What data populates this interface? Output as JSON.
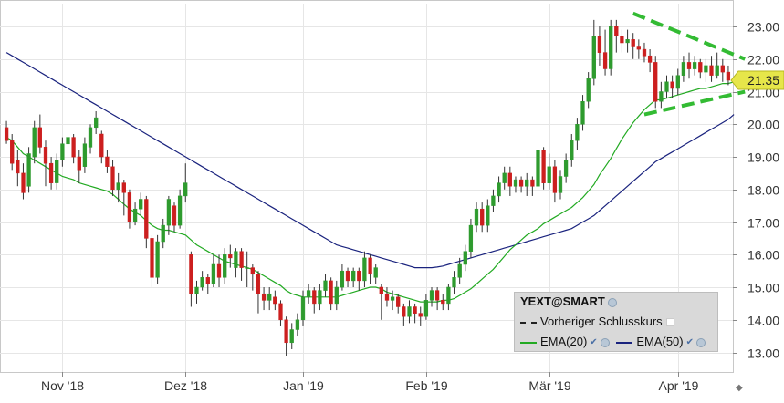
{
  "chart_data": {
    "type": "candlestick",
    "symbol": "YEXT@SMART",
    "last_price_label": "21.35",
    "ylim": [
      12.4,
      23.7
    ],
    "y_ticks": [
      "13.00",
      "14.00",
      "15.00",
      "16.00",
      "17.00",
      "18.00",
      "19.00",
      "20.00",
      "21.00",
      "22.00",
      "23.00"
    ],
    "x_ticks": [
      {
        "label": "Nov '18",
        "index": 10
      },
      {
        "label": "Dez '18",
        "index": 32
      },
      {
        "label": "Jan '19",
        "index": 53
      },
      {
        "label": "Feb '19",
        "index": 75
      },
      {
        "label": "Mär '19",
        "index": 97
      },
      {
        "label": "Apr '19",
        "index": 120
      }
    ],
    "candles": [
      [
        19.9,
        19.5,
        19.4,
        20.1
      ],
      [
        19.5,
        18.8,
        18.6,
        19.7
      ],
      [
        18.9,
        18.5,
        18.1,
        19.2
      ],
      [
        18.5,
        17.9,
        17.7,
        18.8
      ],
      [
        18.1,
        19.1,
        17.9,
        19.3
      ],
      [
        19.0,
        19.9,
        18.8,
        20.1
      ],
      [
        19.9,
        19.3,
        19.1,
        20.3
      ],
      [
        19.3,
        18.8,
        18.1,
        19.5
      ],
      [
        18.8,
        18.2,
        18.0,
        19.0
      ],
      [
        18.2,
        18.9,
        18.0,
        19.1
      ],
      [
        18.9,
        19.4,
        18.7,
        19.6
      ],
      [
        19.4,
        19.6,
        19.2,
        19.8
      ],
      [
        19.6,
        19.0,
        18.8,
        19.7
      ],
      [
        19.0,
        18.6,
        18.2,
        19.2
      ],
      [
        18.7,
        19.4,
        18.5,
        19.6
      ],
      [
        19.3,
        19.9,
        19.1,
        20.0
      ],
      [
        19.9,
        20.2,
        19.7,
        20.4
      ],
      [
        19.7,
        19.0,
        18.8,
        19.8
      ],
      [
        19.0,
        18.7,
        18.5,
        19.2
      ],
      [
        18.7,
        18.0,
        17.8,
        18.9
      ],
      [
        18.0,
        18.2,
        17.6,
        18.5
      ],
      [
        18.2,
        17.9,
        17.2,
        18.3
      ],
      [
        17.9,
        17.0,
        16.8,
        18.0
      ],
      [
        17.0,
        17.4,
        16.9,
        17.6
      ],
      [
        17.4,
        17.7,
        17.2,
        17.9
      ],
      [
        17.7,
        16.5,
        16.2,
        17.8
      ],
      [
        16.5,
        15.3,
        15.0,
        16.6
      ],
      [
        15.3,
        16.4,
        15.1,
        16.6
      ],
      [
        16.4,
        16.9,
        16.2,
        17.1
      ],
      [
        16.9,
        17.7,
        16.6,
        17.8
      ],
      [
        17.5,
        16.9,
        16.7,
        17.6
      ],
      [
        16.9,
        17.8,
        16.8,
        18.0
      ],
      [
        17.8,
        18.2,
        17.6,
        18.8
      ],
      [
        16.0,
        14.8,
        14.4,
        16.1
      ],
      [
        14.8,
        15.0,
        14.5,
        15.2
      ],
      [
        15.0,
        15.3,
        14.9,
        15.5
      ],
      [
        15.3,
        15.1,
        14.8,
        15.4
      ],
      [
        15.1,
        15.7,
        15.0,
        16.0
      ],
      [
        15.7,
        15.3,
        15.0,
        16.0
      ],
      [
        15.3,
        16.0,
        15.1,
        16.2
      ],
      [
        16.0,
        15.9,
        15.6,
        16.3
      ],
      [
        15.6,
        16.1,
        15.3,
        16.2
      ],
      [
        16.1,
        15.6,
        15.2,
        16.2
      ],
      [
        15.6,
        15.6,
        15.0,
        16.1
      ],
      [
        15.6,
        15.4,
        14.9,
        15.7
      ],
      [
        15.4,
        14.8,
        14.2,
        15.5
      ],
      [
        14.8,
        14.6,
        14.3,
        15.0
      ],
      [
        14.6,
        14.8,
        14.3,
        15.0
      ],
      [
        14.7,
        14.5,
        14.3,
        14.9
      ],
      [
        14.5,
        14.0,
        13.8,
        14.6
      ],
      [
        14.0,
        13.3,
        12.9,
        14.1
      ],
      [
        13.3,
        13.7,
        13.1,
        13.9
      ],
      [
        13.7,
        14.0,
        13.5,
        14.2
      ],
      [
        14.0,
        14.7,
        13.8,
        14.9
      ],
      [
        14.7,
        14.9,
        14.5,
        15.1
      ],
      [
        14.9,
        14.5,
        14.2,
        15.0
      ],
      [
        14.5,
        14.9,
        14.3,
        15.1
      ],
      [
        14.9,
        15.2,
        14.7,
        15.4
      ],
      [
        15.2,
        14.5,
        14.3,
        15.3
      ],
      [
        14.5,
        15.0,
        14.3,
        15.2
      ],
      [
        15.0,
        15.5,
        14.9,
        15.7
      ],
      [
        15.5,
        15.2,
        15.0,
        15.6
      ],
      [
        15.2,
        15.5,
        15.0,
        15.6
      ],
      [
        15.5,
        15.2,
        14.9,
        15.6
      ],
      [
        15.2,
        15.9,
        15.0,
        16.1
      ],
      [
        15.9,
        15.4,
        15.1,
        16.0
      ],
      [
        15.3,
        15.6,
        15.1,
        15.7
      ],
      [
        15.0,
        14.8,
        14.0,
        15.1
      ],
      [
        14.8,
        14.6,
        14.4,
        15.0
      ],
      [
        14.6,
        14.7,
        14.3,
        14.9
      ],
      [
        14.7,
        14.4,
        14.2,
        14.8
      ],
      [
        14.4,
        14.1,
        13.8,
        14.5
      ],
      [
        14.1,
        14.4,
        13.9,
        14.6
      ],
      [
        14.4,
        14.2,
        13.9,
        14.5
      ],
      [
        14.2,
        14.1,
        13.8,
        14.4
      ],
      [
        14.1,
        14.6,
        14.0,
        14.8
      ],
      [
        14.6,
        14.9,
        14.4,
        15.0
      ],
      [
        14.9,
        14.6,
        14.3,
        15.0
      ],
      [
        14.6,
        14.5,
        14.3,
        14.8
      ],
      [
        14.5,
        15.0,
        14.3,
        15.1
      ],
      [
        15.0,
        15.3,
        14.8,
        15.5
      ],
      [
        15.3,
        15.7,
        15.1,
        15.9
      ],
      [
        15.7,
        16.1,
        15.5,
        16.3
      ],
      [
        16.1,
        16.9,
        15.9,
        17.1
      ],
      [
        16.9,
        17.4,
        16.7,
        17.6
      ],
      [
        17.4,
        16.9,
        16.7,
        17.6
      ],
      [
        16.9,
        17.5,
        16.7,
        17.7
      ],
      [
        17.5,
        17.8,
        17.3,
        18.0
      ],
      [
        17.8,
        18.2,
        17.6,
        18.4
      ],
      [
        18.2,
        18.5,
        18.0,
        18.7
      ],
      [
        18.5,
        18.1,
        17.8,
        18.7
      ],
      [
        18.1,
        18.3,
        17.9,
        18.4
      ],
      [
        18.3,
        18.1,
        17.9,
        18.4
      ],
      [
        18.1,
        18.3,
        17.8,
        18.5
      ],
      [
        18.3,
        18.1,
        17.8,
        18.4
      ],
      [
        18.1,
        19.2,
        17.9,
        19.4
      ],
      [
        19.2,
        18.2,
        18.0,
        19.3
      ],
      [
        18.2,
        18.7,
        18.0,
        19.1
      ],
      [
        18.7,
        17.9,
        17.6,
        18.9
      ],
      [
        17.9,
        18.4,
        17.7,
        18.6
      ],
      [
        18.4,
        18.9,
        18.2,
        19.1
      ],
      [
        18.9,
        19.5,
        18.7,
        19.7
      ],
      [
        19.5,
        20.0,
        19.2,
        20.2
      ],
      [
        20.0,
        20.7,
        19.8,
        20.9
      ],
      [
        20.7,
        21.4,
        20.5,
        21.6
      ],
      [
        21.4,
        22.7,
        21.2,
        23.2
      ],
      [
        22.7,
        22.2,
        21.8,
        23.0
      ],
      [
        22.2,
        21.7,
        21.5,
        22.9
      ],
      [
        21.7,
        23.0,
        21.5,
        23.2
      ],
      [
        23.0,
        22.7,
        22.2,
        23.2
      ],
      [
        22.7,
        22.5,
        22.2,
        22.9
      ],
      [
        22.5,
        22.6,
        22.2,
        22.9
      ],
      [
        22.6,
        22.4,
        22.0,
        22.8
      ],
      [
        22.4,
        22.3,
        22.0,
        22.6
      ],
      [
        22.3,
        22.1,
        21.9,
        22.5
      ],
      [
        22.1,
        21.9,
        21.6,
        22.3
      ],
      [
        21.9,
        20.7,
        20.5,
        22.1
      ],
      [
        20.7,
        21.0,
        20.5,
        21.3
      ],
      [
        21.0,
        21.3,
        20.8,
        21.5
      ],
      [
        21.3,
        21.1,
        20.8,
        21.5
      ],
      [
        21.1,
        21.5,
        20.9,
        21.7
      ],
      [
        21.5,
        21.9,
        21.3,
        22.1
      ],
      [
        21.9,
        21.7,
        21.4,
        22.2
      ],
      [
        21.7,
        21.9,
        21.5,
        22.1
      ],
      [
        21.9,
        21.6,
        21.4,
        22.0
      ],
      [
        21.6,
        21.8,
        21.3,
        22.0
      ],
      [
        21.8,
        21.5,
        21.3,
        22.1
      ],
      [
        21.5,
        21.8,
        21.4,
        22.2
      ],
      [
        21.8,
        21.6,
        21.3,
        22.0
      ],
      [
        21.6,
        21.35,
        21.2,
        21.8
      ]
    ],
    "series": [
      {
        "name": "Vorheriger Schlusskurs",
        "color": "#000000",
        "style": "dashed"
      },
      {
        "name": "EMA(20)",
        "color": "#22aa22",
        "values": [
          19.6,
          19.5,
          19.3,
          19.1,
          19.0,
          18.9,
          18.8,
          18.7,
          18.6,
          18.5,
          18.4,
          18.35,
          18.3,
          18.2,
          18.15,
          18.1,
          18.05,
          18.0,
          17.95,
          17.85,
          17.7,
          17.55,
          17.4,
          17.3,
          17.2,
          17.05,
          16.9,
          16.8,
          16.75,
          16.75,
          16.7,
          16.65,
          16.6,
          16.45,
          16.3,
          16.2,
          16.1,
          16.0,
          15.9,
          15.8,
          15.75,
          15.7,
          15.65,
          15.6,
          15.55,
          15.45,
          15.35,
          15.25,
          15.15,
          15.05,
          14.9,
          14.8,
          14.75,
          14.7,
          14.7,
          14.7,
          14.7,
          14.7,
          14.7,
          14.7,
          14.75,
          14.8,
          14.85,
          14.9,
          14.95,
          15.0,
          15.0,
          14.95,
          14.85,
          14.8,
          14.75,
          14.7,
          14.65,
          14.6,
          14.55,
          14.55,
          14.55,
          14.55,
          14.6,
          14.6,
          14.65,
          14.75,
          14.85,
          14.95,
          15.1,
          15.25,
          15.4,
          15.55,
          15.75,
          15.95,
          16.15,
          16.3,
          16.45,
          16.6,
          16.7,
          16.8,
          16.95,
          17.05,
          17.15,
          17.25,
          17.35,
          17.45,
          17.6,
          17.75,
          17.95,
          18.15,
          18.45,
          18.7,
          18.95,
          19.25,
          19.55,
          19.8,
          20.05,
          20.25,
          20.45,
          20.6,
          20.75,
          20.75,
          20.8,
          20.85,
          20.9,
          20.95,
          21.0,
          21.05,
          21.1,
          21.1,
          21.15,
          21.2,
          21.25,
          21.25,
          21.3
        ]
      },
      {
        "name": "EMA(50)",
        "color": "#1a237e",
        "values": [
          22.2,
          22.1,
          22.0,
          21.9,
          21.8,
          21.7,
          21.6,
          21.5,
          21.4,
          21.3,
          21.2,
          21.1,
          21.0,
          20.9,
          20.8,
          20.7,
          20.6,
          20.5,
          20.4,
          20.3,
          20.2,
          20.1,
          20.0,
          19.9,
          19.8,
          19.7,
          19.6,
          19.5,
          19.4,
          19.3,
          19.2,
          19.1,
          19.0,
          18.9,
          18.8,
          18.7,
          18.6,
          18.5,
          18.4,
          18.3,
          18.2,
          18.1,
          18.0,
          17.9,
          17.8,
          17.7,
          17.6,
          17.5,
          17.4,
          17.3,
          17.2,
          17.1,
          17.0,
          16.9,
          16.8,
          16.7,
          16.6,
          16.5,
          16.4,
          16.3,
          16.25,
          16.2,
          16.15,
          16.1,
          16.05,
          16.0,
          15.95,
          15.9,
          15.85,
          15.8,
          15.75,
          15.7,
          15.65,
          15.6,
          15.6,
          15.6,
          15.6,
          15.62,
          15.65,
          15.7,
          15.75,
          15.8,
          15.85,
          15.9,
          15.95,
          16.0,
          16.05,
          16.1,
          16.15,
          16.2,
          16.25,
          16.3,
          16.35,
          16.4,
          16.45,
          16.5,
          16.55,
          16.6,
          16.65,
          16.7,
          16.75,
          16.8,
          16.9,
          17.0,
          17.1,
          17.2,
          17.35,
          17.5,
          17.65,
          17.8,
          17.95,
          18.1,
          18.25,
          18.4,
          18.55,
          18.7,
          18.85,
          18.95,
          19.05,
          19.15,
          19.25,
          19.35,
          19.45,
          19.55,
          19.65,
          19.75,
          19.85,
          19.95,
          20.05,
          20.15,
          20.3
        ]
      }
    ],
    "annotation": {
      "type": "symmetrical-triangle",
      "color": "#33bb33",
      "upper": [
        {
          "i": 112,
          "v": 23.4
        },
        {
          "i": 131,
          "v": 22.0
        }
      ],
      "lower": [
        {
          "i": 114,
          "v": 20.3
        },
        {
          "i": 131,
          "v": 21.0
        }
      ]
    }
  },
  "legend": {
    "title": "YEXT@SMART",
    "prev_close": "Vorheriger Schlusskurs",
    "ema20": "EMA(20)",
    "ema50": "EMA(50)"
  }
}
